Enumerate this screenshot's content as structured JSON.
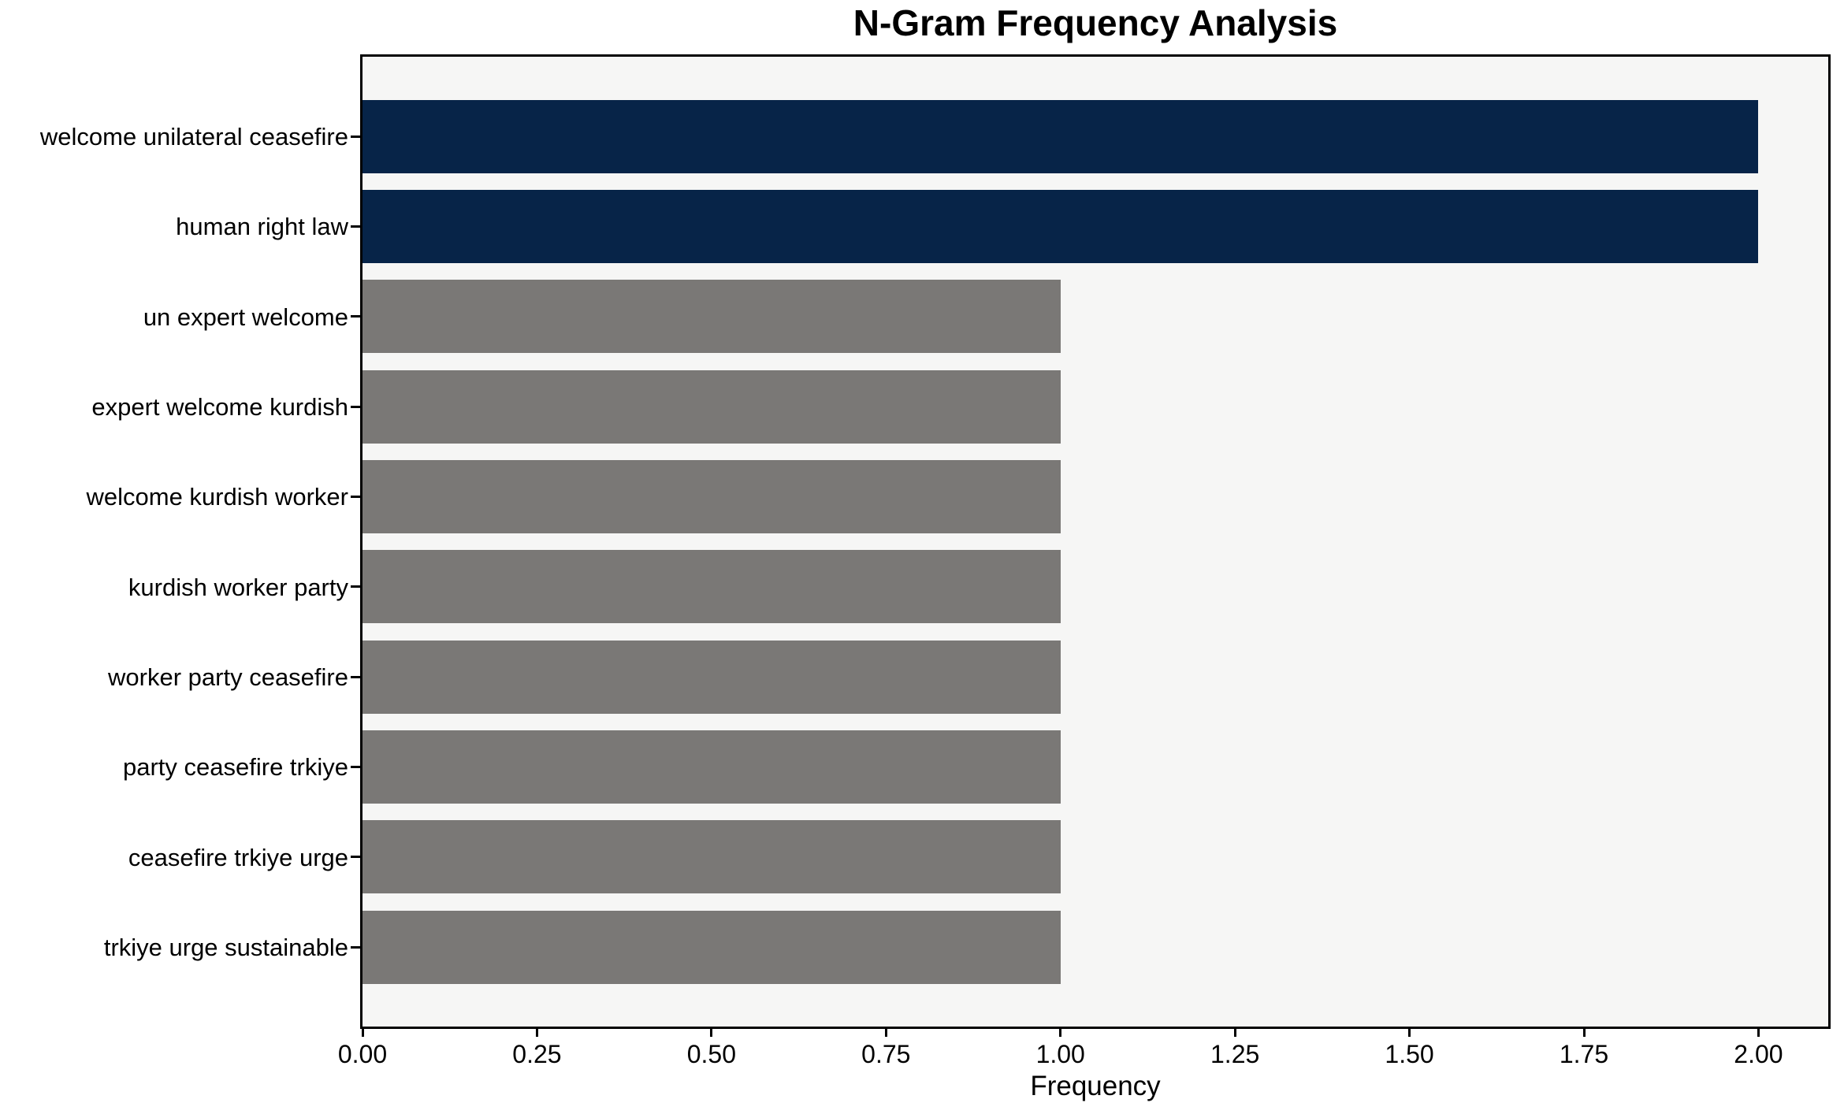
{
  "chart_data": {
    "type": "bar",
    "orientation": "horizontal",
    "title": "N-Gram Frequency Analysis",
    "xlabel": "Frequency",
    "ylabel": "",
    "categories": [
      "welcome unilateral ceasefire",
      "human right law",
      "un expert welcome",
      "expert welcome kurdish",
      "welcome kurdish worker",
      "kurdish worker party",
      "worker party ceasefire",
      "party ceasefire trkiye",
      "ceasefire trkiye urge",
      "trkiye urge sustainable"
    ],
    "values": [
      2,
      2,
      1,
      1,
      1,
      1,
      1,
      1,
      1,
      1
    ],
    "bar_colors": [
      "#072448",
      "#072448",
      "#7a7876",
      "#7a7876",
      "#7a7876",
      "#7a7876",
      "#7a7876",
      "#7a7876",
      "#7a7876",
      "#7a7876"
    ],
    "xlim": [
      0,
      2.1
    ],
    "x_ticks": [
      0,
      0.25,
      0.5,
      0.75,
      1.0,
      1.25,
      1.5,
      1.75,
      2.0
    ],
    "x_tick_labels": [
      "0.00",
      "0.25",
      "0.50",
      "0.75",
      "1.00",
      "1.25",
      "1.50",
      "1.75",
      "2.00"
    ],
    "grid": false,
    "legend_position": "none",
    "highlight_color": "#072448",
    "default_color": "#7a7876",
    "plot_background": "#f6f6f5",
    "figure_background": "#ffffff",
    "spine_color": "#000000"
  }
}
